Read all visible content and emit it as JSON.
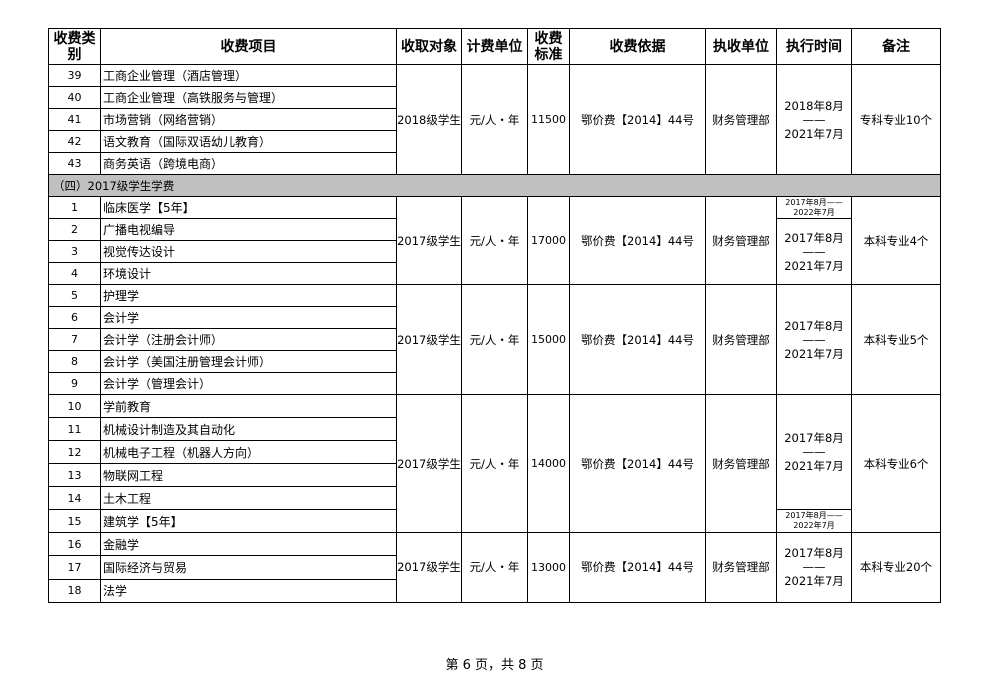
{
  "headers": [
    "收费类\n别",
    "收费项目",
    "收取对象",
    "计费单位",
    "收费\n标准",
    "收费依据",
    "执收单位",
    "执行时间",
    "备注"
  ],
  "section_title": "（四）2017级学生学费",
  "groups_before": [
    {
      "rows": [
        [
          "39",
          "工商企业管理（酒店管理）"
        ],
        [
          "40",
          "工商企业管理（高铁服务与管理）"
        ],
        [
          "41",
          "市场营销（网络营销）"
        ],
        [
          "42",
          "语文教育（国际双语幼儿教育）"
        ],
        [
          "43",
          "商务英语（跨境电商）"
        ]
      ],
      "target": "2018级学生",
      "unit": "元/人・年",
      "fee": "11500",
      "basis": "鄂价费【2014】44号",
      "dept": "财务管理部",
      "time": "2018年8月\n——\n2021年7月",
      "note": "专科专业10个"
    }
  ],
  "groups_after": [
    {
      "rows": [
        [
          "1",
          "临床医学【5年】"
        ],
        [
          "2",
          "广播电视编导"
        ],
        [
          "3",
          "视觉传达设计"
        ],
        [
          "4",
          "环境设计"
        ]
      ],
      "target": "2017级学生",
      "unit": "元/人・年",
      "fee": "17000",
      "basis": "鄂价费【2014】44号",
      "dept": "财务管理部",
      "time": "2017年8月\n——\n2021年7月",
      "note": "本科专业4个",
      "special_time": "2017年8月——\n2022年7月",
      "special_pos": "first"
    },
    {
      "rows": [
        [
          "5",
          "护理学"
        ],
        [
          "6",
          "会计学"
        ],
        [
          "7",
          "会计学（注册会计师）"
        ],
        [
          "8",
          "会计学（美国注册管理会计师）"
        ],
        [
          "9",
          "会计学（管理会计）"
        ]
      ],
      "target": "2017级学生",
      "unit": "元/人・年",
      "fee": "15000",
      "basis": "鄂价费【2014】44号",
      "dept": "财务管理部",
      "time": "2017年8月\n——\n2021年7月",
      "note": "本科专业5个"
    },
    {
      "rows": [
        [
          "10",
          "学前教育"
        ],
        [
          "11",
          "机械设计制造及其自动化"
        ],
        [
          "12",
          "机械电子工程（机器人方向）"
        ],
        [
          "13",
          "物联网工程"
        ],
        [
          "14",
          "土木工程"
        ],
        [
          "15",
          "建筑学【5年】"
        ]
      ],
      "target": "2017级学生",
      "unit": "元/人・年",
      "fee": "14000",
      "basis": "鄂价费【2014】44号",
      "dept": "财务管理部",
      "time": "2017年8月\n——\n2021年7月",
      "note": "本科专业6个",
      "special_time": "2017年8月——\n2022年7月",
      "special_pos": "last"
    },
    {
      "rows": [
        [
          "16",
          "金融学"
        ],
        [
          "17",
          "国际经济与贸易"
        ],
        [
          "18",
          "法学"
        ]
      ],
      "target": "2017级学生",
      "unit": "元/人・年",
      "fee": "13000",
      "basis": "鄂价费【2014】44号",
      "dept": "财务管理部",
      "time": "2017年8月\n——\n2021年7月",
      "note": "本科专业20个"
    }
  ],
  "footer": "第 6 页，共 8 页",
  "colors": {
    "section_bg": "#c0c0c0",
    "border": "#000000"
  }
}
